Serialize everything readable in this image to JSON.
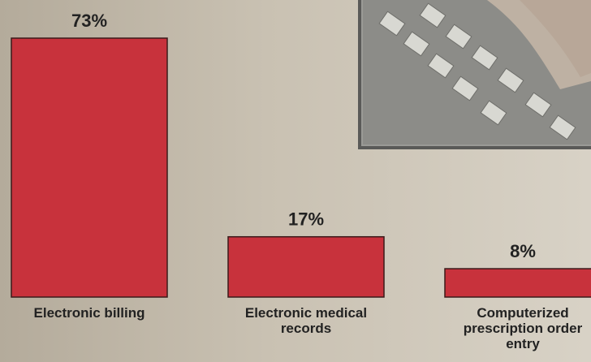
{
  "chart_data": {
    "type": "bar",
    "categories": [
      "Electronic billing",
      "Electronic medical records",
      "Computerized prescription order entry"
    ],
    "values": [
      73,
      17,
      8
    ],
    "value_labels": [
      "73%",
      "17%",
      "8%"
    ],
    "color": "#c8323c"
  }
}
